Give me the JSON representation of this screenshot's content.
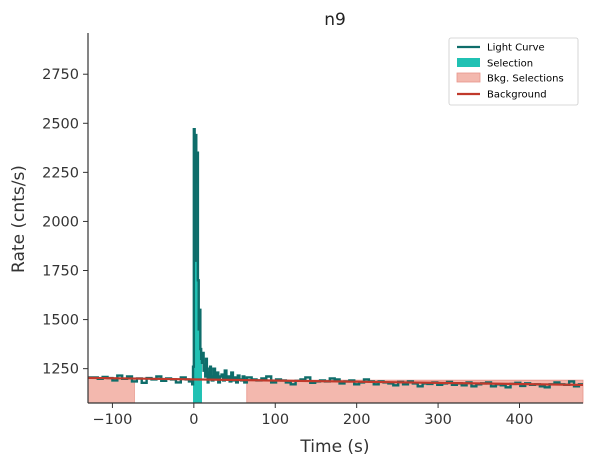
{
  "chart_data": {
    "type": "line",
    "title": "n9",
    "xlabel": "Time (s)",
    "ylabel": "Rate (cnts/s)",
    "xlim": [
      -130,
      478
    ],
    "ylim": [
      1075,
      2960
    ],
    "x_ticks": [
      -100,
      0,
      100,
      200,
      300,
      400
    ],
    "y_ticks": [
      1250,
      1500,
      1750,
      2000,
      2250,
      2500,
      2750
    ],
    "x_tick_labels": [
      "−100",
      "0",
      "100",
      "200",
      "300",
      "400"
    ],
    "y_tick_labels": [
      "1250",
      "1500",
      "1750",
      "2000",
      "2250",
      "2500",
      "2750"
    ],
    "legend": {
      "position": "top-right",
      "entries": [
        "Light Curve",
        "Selection",
        "Bkg. Selections",
        "Background"
      ]
    },
    "colors": {
      "light_curve": "#0e6d6a",
      "selection": "#20c1b3",
      "bkg_selection": "#f3b8ae",
      "bkg_selection_edge": "#e8958a",
      "background": "#c0392b",
      "axis": "#333333"
    },
    "selection_interval": [
      -1,
      10
    ],
    "bkg_selection_intervals": [
      [
        -130,
        -73
      ],
      [
        65,
        478
      ]
    ],
    "background_line": {
      "x": [
        -130,
        478
      ],
      "y": [
        1203,
        1167
      ]
    },
    "series": [
      {
        "name": "Light Curve",
        "x": [
          -130,
          -118,
          -112,
          -106,
          -100,
          -94,
          -88,
          -82,
          -76,
          -70,
          -64,
          -58,
          -52,
          -46,
          -40,
          -34,
          -28,
          -22,
          -16,
          -10,
          -6,
          -2,
          -1,
          0,
          1,
          2,
          3,
          4,
          5,
          6,
          7,
          8,
          9,
          10,
          11,
          12,
          13,
          14,
          15,
          16,
          17,
          18,
          19,
          20,
          21,
          22,
          24,
          26,
          28,
          30,
          32,
          34,
          36,
          38,
          40,
          42,
          44,
          46,
          48,
          50,
          52,
          54,
          56,
          58,
          60,
          62,
          65,
          71,
          77,
          83,
          89,
          95,
          101,
          107,
          113,
          119,
          125,
          131,
          137,
          143,
          149,
          155,
          161,
          167,
          173,
          179,
          185,
          191,
          197,
          203,
          209,
          215,
          221,
          227,
          233,
          239,
          245,
          251,
          257,
          263,
          269,
          275,
          281,
          287,
          293,
          299,
          305,
          311,
          317,
          323,
          329,
          335,
          341,
          347,
          353,
          359,
          365,
          371,
          377,
          383,
          389,
          395,
          401,
          407,
          413,
          419,
          425,
          431,
          437,
          443,
          449,
          455,
          461,
          467,
          473
        ],
        "y": [
          1205,
          1198,
          1208,
          1202,
          1190,
          1215,
          1198,
          1210,
          1185,
          1200,
          1178,
          1202,
          1195,
          1210,
          1188,
          1200,
          1195,
          1180,
          1205,
          1195,
          1185,
          1170,
          1260,
          2470,
          1800,
          2440,
          2200,
          2350,
          1700,
          1450,
          1550,
          1350,
          1300,
          1280,
          1330,
          1240,
          1270,
          1210,
          1300,
          1250,
          1180,
          1230,
          1200,
          1260,
          1210,
          1190,
          1250,
          1200,
          1230,
          1180,
          1210,
          1220,
          1190,
          1240,
          1200,
          1210,
          1185,
          1230,
          1190,
          1205,
          1180,
          1215,
          1195,
          1190,
          1210,
          1180,
          1205,
          1195,
          1190,
          1200,
          1210,
          1180,
          1195,
          1190,
          1180,
          1170,
          1188,
          1195,
          1205,
          1178,
          1185,
          1190,
          1185,
          1200,
          1195,
          1175,
          1185,
          1190,
          1170,
          1180,
          1195,
          1185,
          1170,
          1185,
          1180,
          1175,
          1165,
          1182,
          1170,
          1185,
          1175,
          1160,
          1175,
          1172,
          1180,
          1168,
          1175,
          1182,
          1168,
          1175,
          1165,
          1180,
          1160,
          1170,
          1175,
          1180,
          1160,
          1170,
          1165,
          1155,
          1172,
          1178,
          1162,
          1175,
          1168,
          1170,
          1160,
          1155,
          1170,
          1180,
          1170,
          1168,
          1185,
          1160,
          1170
        ]
      }
    ]
  }
}
